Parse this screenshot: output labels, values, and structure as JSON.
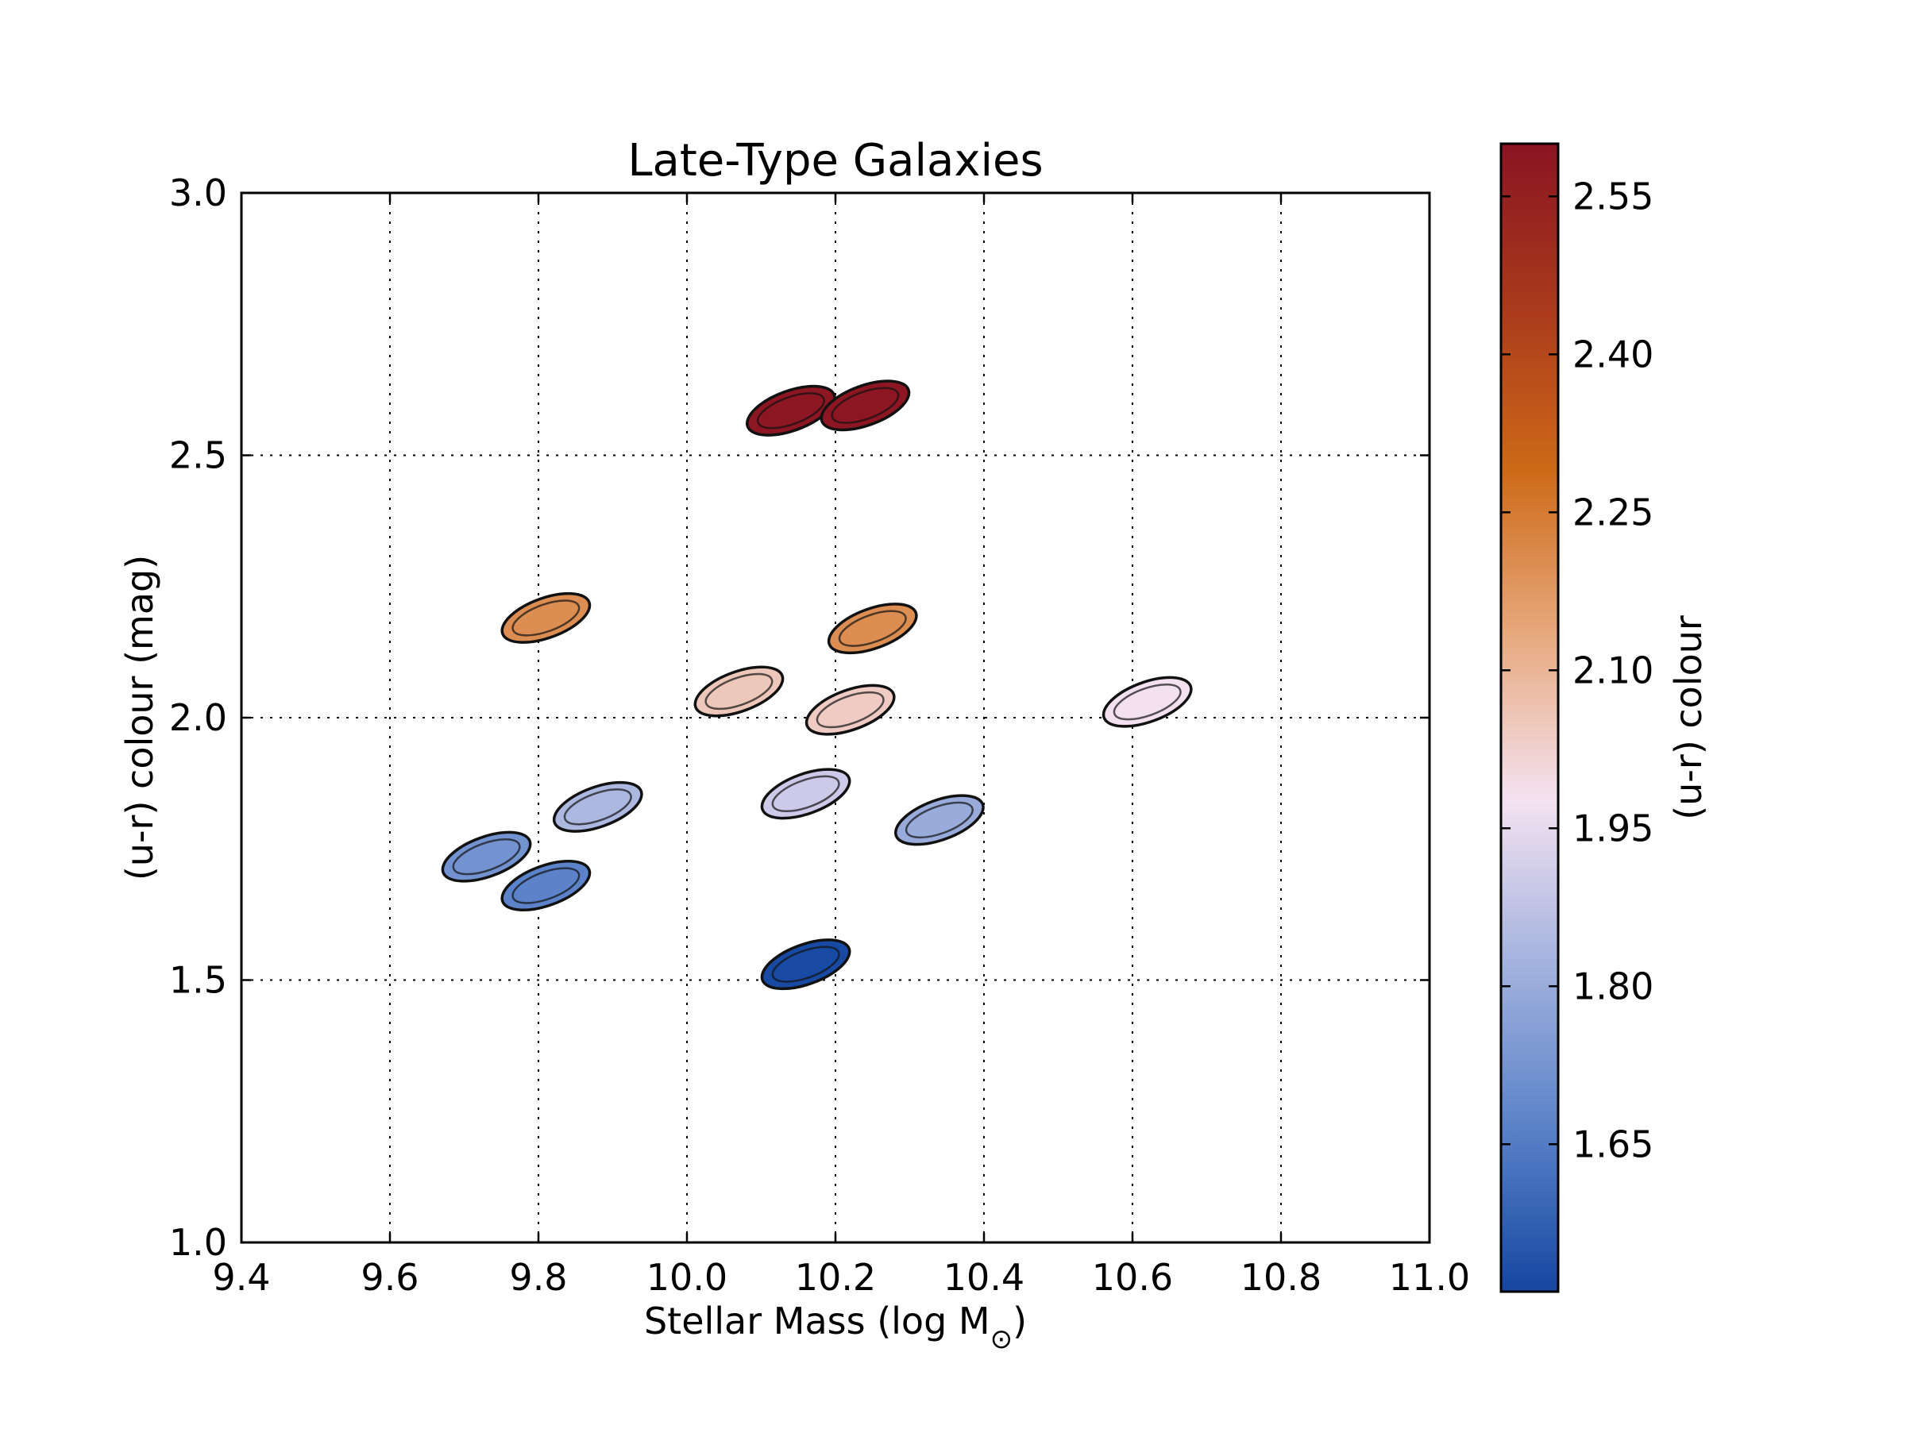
{
  "chart_data": {
    "type": "scatter",
    "title": "Late-Type Galaxies",
    "xlabel": "Stellar Mass (log M",
    "xlabel_symbol": "⊙",
    "xlabel_close": ")",
    "ylabel": "(u-r) colour (mag)",
    "xlim": [
      9.4,
      11.0
    ],
    "ylim": [
      1.0,
      3.0
    ],
    "x_ticks": [
      "9.4",
      "9.6",
      "9.8",
      "10.0",
      "10.2",
      "10.4",
      "10.6",
      "10.8",
      "11.0"
    ],
    "y_ticks": [
      "1.0",
      "1.5",
      "2.0",
      "2.5",
      "3.0"
    ],
    "grid": true,
    "marker": "ellipse",
    "colorbar": {
      "label": "(u-r) colour",
      "range": [
        1.51,
        2.6
      ],
      "ticks": [
        "1.65",
        "1.80",
        "1.95",
        "2.10",
        "2.25",
        "2.40",
        "2.55"
      ],
      "colormap": [
        "#1546a0",
        "#5a82c8",
        "#a3b2de",
        "#f4e2f1",
        "#e7a97e",
        "#cd6a18",
        "#aa3a1c",
        "#8a1422"
      ]
    },
    "points": [
      {
        "x": 10.14,
        "y": 2.585,
        "color": 2.59
      },
      {
        "x": 10.24,
        "y": 2.595,
        "color": 2.59
      },
      {
        "x": 9.81,
        "y": 2.19,
        "color": 2.2
      },
      {
        "x": 10.25,
        "y": 2.17,
        "color": 2.2
      },
      {
        "x": 10.07,
        "y": 2.05,
        "color": 2.05
      },
      {
        "x": 10.22,
        "y": 2.015,
        "color": 2.04
      },
      {
        "x": 10.62,
        "y": 2.03,
        "color": 1.98
      },
      {
        "x": 9.88,
        "y": 1.83,
        "color": 1.84
      },
      {
        "x": 10.16,
        "y": 1.855,
        "color": 1.9
      },
      {
        "x": 10.34,
        "y": 1.805,
        "color": 1.8
      },
      {
        "x": 9.73,
        "y": 1.735,
        "color": 1.72
      },
      {
        "x": 9.81,
        "y": 1.68,
        "color": 1.67
      },
      {
        "x": 10.16,
        "y": 1.53,
        "color": 1.52
      }
    ]
  }
}
